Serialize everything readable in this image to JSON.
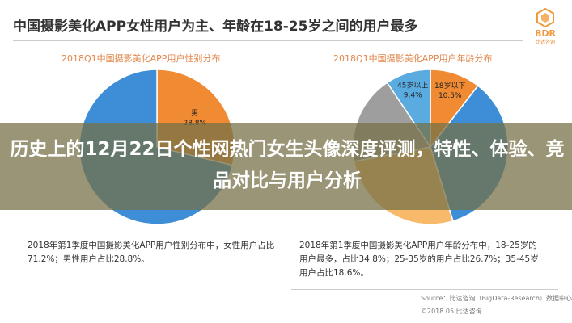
{
  "header": {
    "title": "中国摄影美化APP女性用户为主、年龄在18-25岁之间的用户最多",
    "logo_text": "BDR",
    "logo_sub": "比达咨询"
  },
  "chart_data": [
    {
      "type": "pie",
      "title": "2018Q1中国摄影美化APP用户性别分布",
      "slices": [
        {
          "label": "男",
          "value": 28.8,
          "color": "#f08a33"
        },
        {
          "label": "女",
          "value": 71.2,
          "color": "#3d8ed6"
        }
      ],
      "visible_labels": [
        {
          "name": "男",
          "pct": "28.8%"
        }
      ],
      "caption": "2018年第1季度中国摄影美化APP用户性别分布中，女性用户占比71.2%；男性用户占比28.8%。"
    },
    {
      "type": "pie",
      "title": "2018Q1中国摄影美化APP用户年龄分布",
      "slices": [
        {
          "label": "18岁以下",
          "value": 10.5,
          "color": "#f08a33"
        },
        {
          "label": "18-25岁",
          "value": 34.8,
          "color": "#3d8ed6"
        },
        {
          "label": "26-35岁",
          "value": 26.7,
          "color": "#f7b96a"
        },
        {
          "label": "36-45岁",
          "value": 18.6,
          "color": "#9e9e9e"
        },
        {
          "label": "45岁以上",
          "value": 9.4,
          "color": "#5aabe0"
        }
      ],
      "visible_labels": [
        {
          "name": "18岁以下",
          "pct": "10.5%"
        },
        {
          "name": "45岁以上",
          "pct": "9.4%"
        }
      ],
      "caption": "2018年第1季度中国摄影美化APP用户年龄分布中，18-25岁的用户最多，占比34.8%；25-35岁的用户占比26.7%；35-45岁用户占比18.6%。"
    }
  ],
  "footer": {
    "source": "Source：比达咨询（BigData-Research）数据中心",
    "copyright": "©2018.05 比达咨询"
  },
  "overlay": {
    "headline": "历史上的12月22日个性网热门女生头像深度评测，特性、体验、竞品对比与用户分析"
  }
}
